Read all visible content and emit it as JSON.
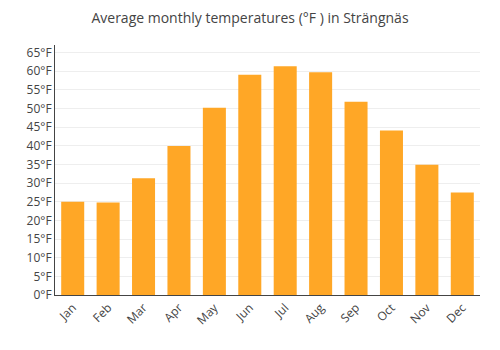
{
  "chart_data": {
    "type": "bar",
    "title": "Average monthly temperatures (°F ) in Strängnäs",
    "categories": [
      "Jan",
      "Feb",
      "Mar",
      "Apr",
      "May",
      "Jun",
      "Jul",
      "Aug",
      "Sep",
      "Oct",
      "Nov",
      "Dec"
    ],
    "values": [
      25.0,
      24.8,
      31.3,
      39.9,
      50.2,
      59.0,
      61.3,
      59.7,
      51.8,
      44.1,
      34.9,
      27.5
    ],
    "color": "#FFA726",
    "ylim": [
      0,
      67
    ],
    "yticks": [
      {
        "value": 0,
        "label": "0°F"
      },
      {
        "value": 5,
        "label": "5°F"
      },
      {
        "value": 10,
        "label": "10°F"
      },
      {
        "value": 15,
        "label": "15°F"
      },
      {
        "value": 20,
        "label": "20°F"
      },
      {
        "value": 25,
        "label": "25°F"
      },
      {
        "value": 30,
        "label": "30°F"
      },
      {
        "value": 35,
        "label": "35°F"
      },
      {
        "value": 40,
        "label": "40°F"
      },
      {
        "value": 45,
        "label": "45°F"
      },
      {
        "value": 50,
        "label": "50°F"
      },
      {
        "value": 55,
        "label": "55°F"
      },
      {
        "value": 60,
        "label": "60°F"
      },
      {
        "value": 65,
        "label": "65°F"
      }
    ],
    "grid": true
  }
}
